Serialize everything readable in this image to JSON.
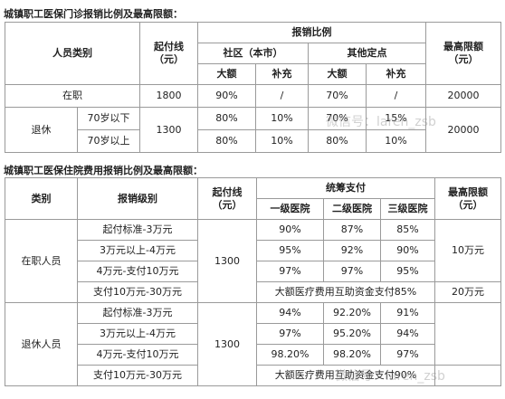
{
  "section1": {
    "title": "城镇职工医保门诊报销比例及最高限额：",
    "headers": {
      "category": "人员类别",
      "deductible": "起付线",
      "deductible_unit": "（元）",
      "ratio": "报销比例",
      "community": "社区（本市）",
      "other": "其他定点",
      "major": "大额",
      "supplement": "补充",
      "limit": "最高限额",
      "limit_unit": "（元）"
    },
    "rows": [
      [
        "在职",
        "1800",
        "90%",
        "/",
        "70%",
        "/",
        "20000"
      ],
      [
        "退休",
        "70岁以下",
        "1300",
        "80%",
        "10%",
        "70%",
        "15%",
        "20000"
      ],
      [
        "70岁以上",
        "80%",
        "10%",
        "80%",
        "10%"
      ]
    ]
  },
  "section2": {
    "title": "城镇职工医保住院费用报销比例及最高限额：",
    "headers": {
      "category": "类别",
      "level": "报销级别",
      "deductible": "起付线",
      "deductible_unit": "（元）",
      "pooled": "统筹支付",
      "h1": "一级医院",
      "h2": "二级医院",
      "h3": "三级医院",
      "limit": "最高限额",
      "limit_unit": "（元）"
    },
    "rows": [
      [
        "在职人员",
        "起付标准-3万元",
        "1300",
        "90%",
        "87%",
        "85%",
        "10万元"
      ],
      [
        "3万元以上-4万元",
        "95%",
        "92%",
        "90%"
      ],
      [
        "4万元-支付10万元",
        "97%",
        "97%",
        "95%"
      ],
      [
        "支付10万元-30万元",
        "大额医疗费用互助资金支付85%",
        "20万元"
      ],
      [
        "退休人员",
        "起付标准-3万元",
        "1300",
        "94%",
        "92.20%",
        "91%"
      ],
      [
        "3万元以上-4万元",
        "97%",
        "95.20%",
        "94%"
      ],
      [
        "4万元-支付10万元",
        "98.20%",
        "98.20%",
        "97%"
      ],
      [
        "支付10万元-30万元",
        "大额医疗费用互助资金支付90%"
      ]
    ]
  },
  "watermark": "微信号：laren_zsb"
}
